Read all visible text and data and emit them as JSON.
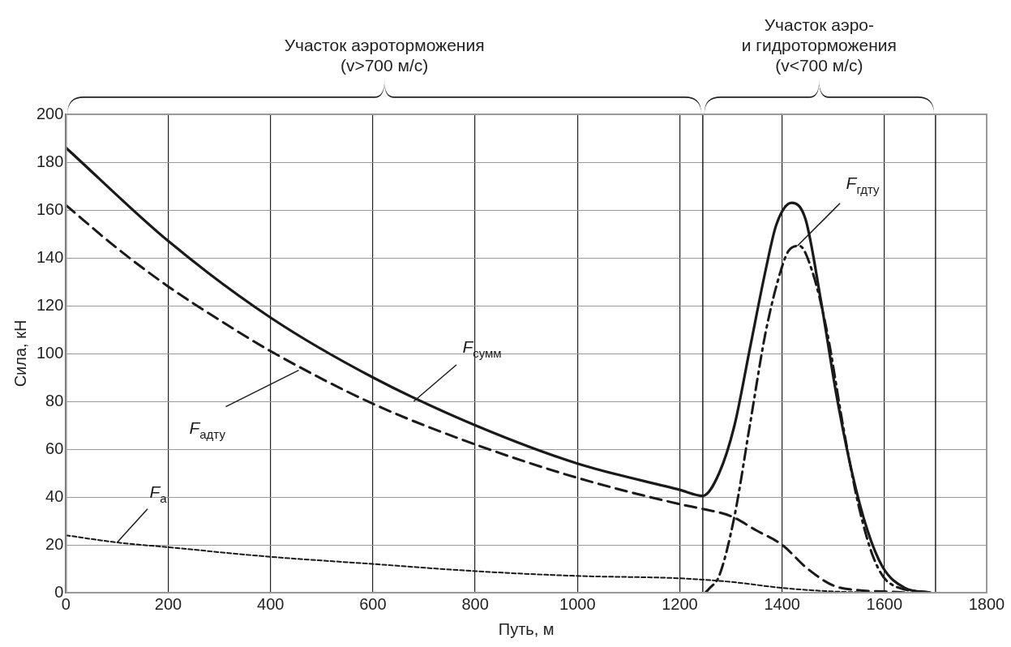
{
  "chart_data": {
    "type": "line",
    "xlabel": "Путь, м",
    "ylabel": "Сила, кН",
    "xlim": [
      0,
      1800
    ],
    "xticks": [
      0,
      200,
      400,
      600,
      800,
      1000,
      1200,
      1400,
      1600,
      1800
    ],
    "ylim": [
      0,
      200
    ],
    "yticks": [
      0,
      20,
      40,
      60,
      80,
      100,
      120,
      140,
      160,
      180,
      200
    ],
    "grid": true,
    "legend": false,
    "marker": "none",
    "ref_lines": [
      {
        "axis": "x",
        "value": 1245,
        "label": null,
        "color": "#222222"
      },
      {
        "axis": "x",
        "value": 1700,
        "label": null,
        "color": "#222222"
      }
    ],
    "series": [
      {
        "color": "#1a1a1a",
        "line_style": "solid",
        "x": [
          0,
          200,
          400,
          600,
          800,
          1000,
          1200,
          1245,
          1277,
          1307,
          1337,
          1368,
          1389,
          1419,
          1446,
          1476,
          1506,
          1537,
          1567,
          1597,
          1640,
          1690
        ],
        "values": [
          186,
          147,
          115,
          90,
          70,
          54,
          43,
          40.5,
          50,
          70,
          102,
          135,
          154,
          163,
          156,
          122,
          83,
          50,
          26,
          10.6,
          2,
          0
        ]
      },
      {
        "color": "#1a1a1a",
        "line_style": "dashed",
        "x": [
          0,
          100,
          200,
          300,
          400,
          600,
          800,
          1000,
          1200,
          1245,
          1300,
          1350,
          1400,
          1450,
          1500,
          1550,
          1600,
          1650
        ],
        "values": [
          162,
          144,
          128,
          114,
          101,
          79,
          62,
          48,
          37,
          35,
          32,
          26,
          20,
          10,
          3,
          1,
          0.5,
          0
        ]
      },
      {
        "color": "#1a1a1a",
        "line_style": "dotted",
        "x": [
          0,
          100,
          200,
          400,
          600,
          800,
          1000,
          1200,
          1300,
          1400,
          1500,
          1600
        ],
        "values": [
          24,
          21,
          19,
          15,
          12,
          9,
          7,
          6,
          4.5,
          2,
          0.5,
          0
        ]
      },
      {
        "color": "#1a1a1a",
        "line_style": "dashdot",
        "x": [
          1250,
          1259,
          1277,
          1307,
          1337,
          1368,
          1398,
          1413,
          1434,
          1458,
          1488,
          1519,
          1549,
          1579,
          1610,
          1690
        ],
        "values": [
          0,
          2,
          7,
          32,
          70,
          109,
          135,
          143,
          145,
          135,
          109,
          70,
          37,
          14.5,
          4,
          0
        ]
      }
    ],
    "annotations": [
      "Участок аэроторможения\n(v>700 м/с)",
      "Участок аэро-\nи гидроторможения\n(v<700 м/с)",
      {
        "text": "F$_{сумм}$",
        "x": 680,
        "y": 80
      },
      {
        "text": "F$_{адту}$",
        "x": 455,
        "y": 93
      },
      {
        "text": "F$_{а}$",
        "x": 100,
        "y": 21
      },
      {
        "text": "F$_{гдту}$",
        "x": 1430,
        "y": 145
      }
    ]
  }
}
